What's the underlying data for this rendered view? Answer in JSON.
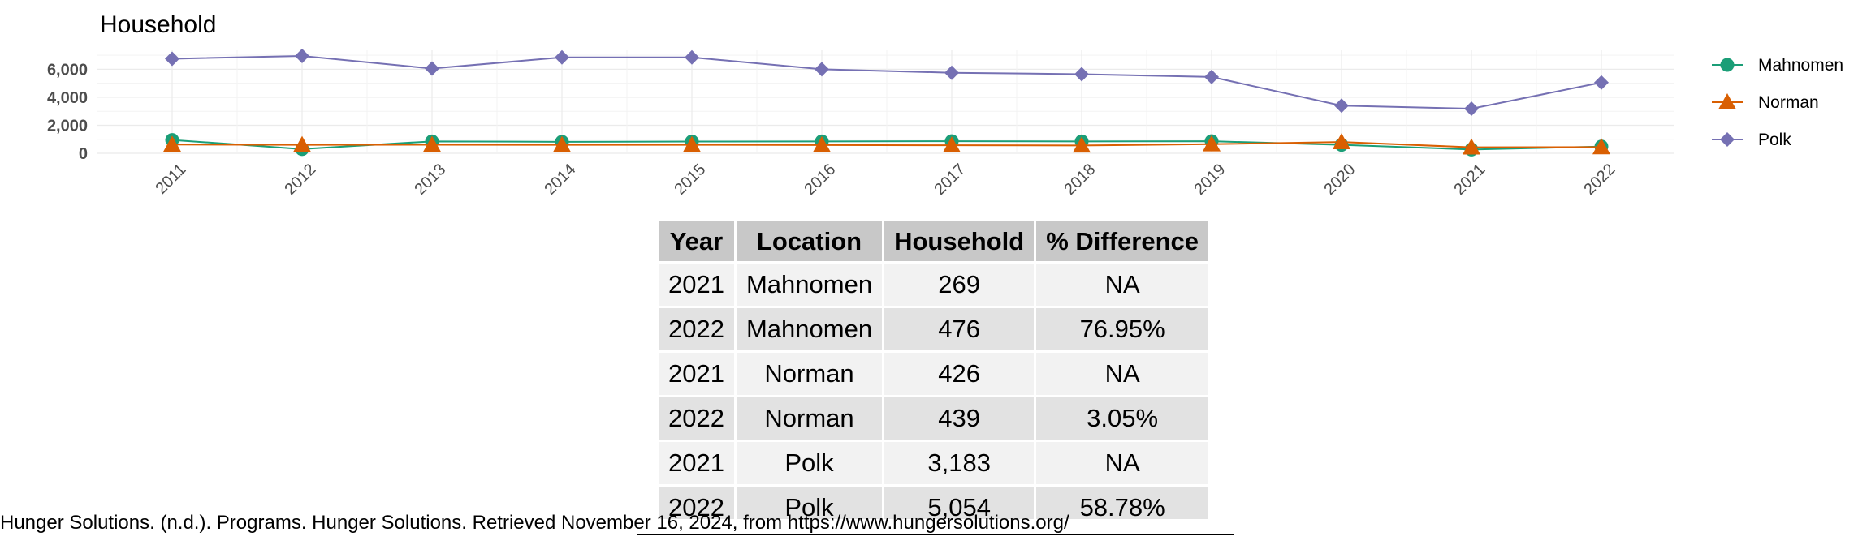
{
  "chart_data": {
    "type": "line",
    "title": "Household",
    "xlabel": "",
    "ylabel": "",
    "x": [
      "2011",
      "2012",
      "2013",
      "2014",
      "2015",
      "2016",
      "2017",
      "2018",
      "2019",
      "2020",
      "2021",
      "2022"
    ],
    "ylim": [
      0,
      7000
    ],
    "yticks": [
      0,
      2000,
      4000,
      6000
    ],
    "ytick_labels": [
      "0",
      "2,000",
      "4,000",
      "6,000"
    ],
    "grid": true,
    "legend_position": "right",
    "series": [
      {
        "name": "Mahnomen",
        "color": "#1b9e77",
        "marker": "circle",
        "values": [
          950,
          300,
          850,
          820,
          840,
          850,
          860,
          850,
          860,
          600,
          269,
          476
        ]
      },
      {
        "name": "Norman",
        "color": "#d95f02",
        "marker": "triangle",
        "values": [
          620,
          600,
          610,
          600,
          600,
          590,
          570,
          560,
          650,
          800,
          426,
          439
        ]
      },
      {
        "name": "Polk",
        "color": "#7570b3",
        "marker": "diamond",
        "values": [
          6750,
          6950,
          6050,
          6850,
          6850,
          6000,
          5750,
          5650,
          5450,
          3400,
          3183,
          5054
        ]
      }
    ]
  },
  "table": {
    "headers": [
      "Year",
      "Location",
      "Household",
      "% Difference"
    ],
    "rows": [
      [
        "2021",
        "Mahnomen",
        "269",
        "NA"
      ],
      [
        "2022",
        "Mahnomen",
        "476",
        "76.95%"
      ],
      [
        "2021",
        "Norman",
        "426",
        "NA"
      ],
      [
        "2022",
        "Norman",
        "439",
        "3.05%"
      ],
      [
        "2021",
        "Polk",
        "3,183",
        "NA"
      ],
      [
        "2022",
        "Polk",
        "5,054",
        "58.78%"
      ]
    ]
  },
  "source": "Hunger Solutions. (n.d.). Programs. Hunger Solutions. Retrieved November 16, 2024, from https://www.hungersolutions.org/"
}
